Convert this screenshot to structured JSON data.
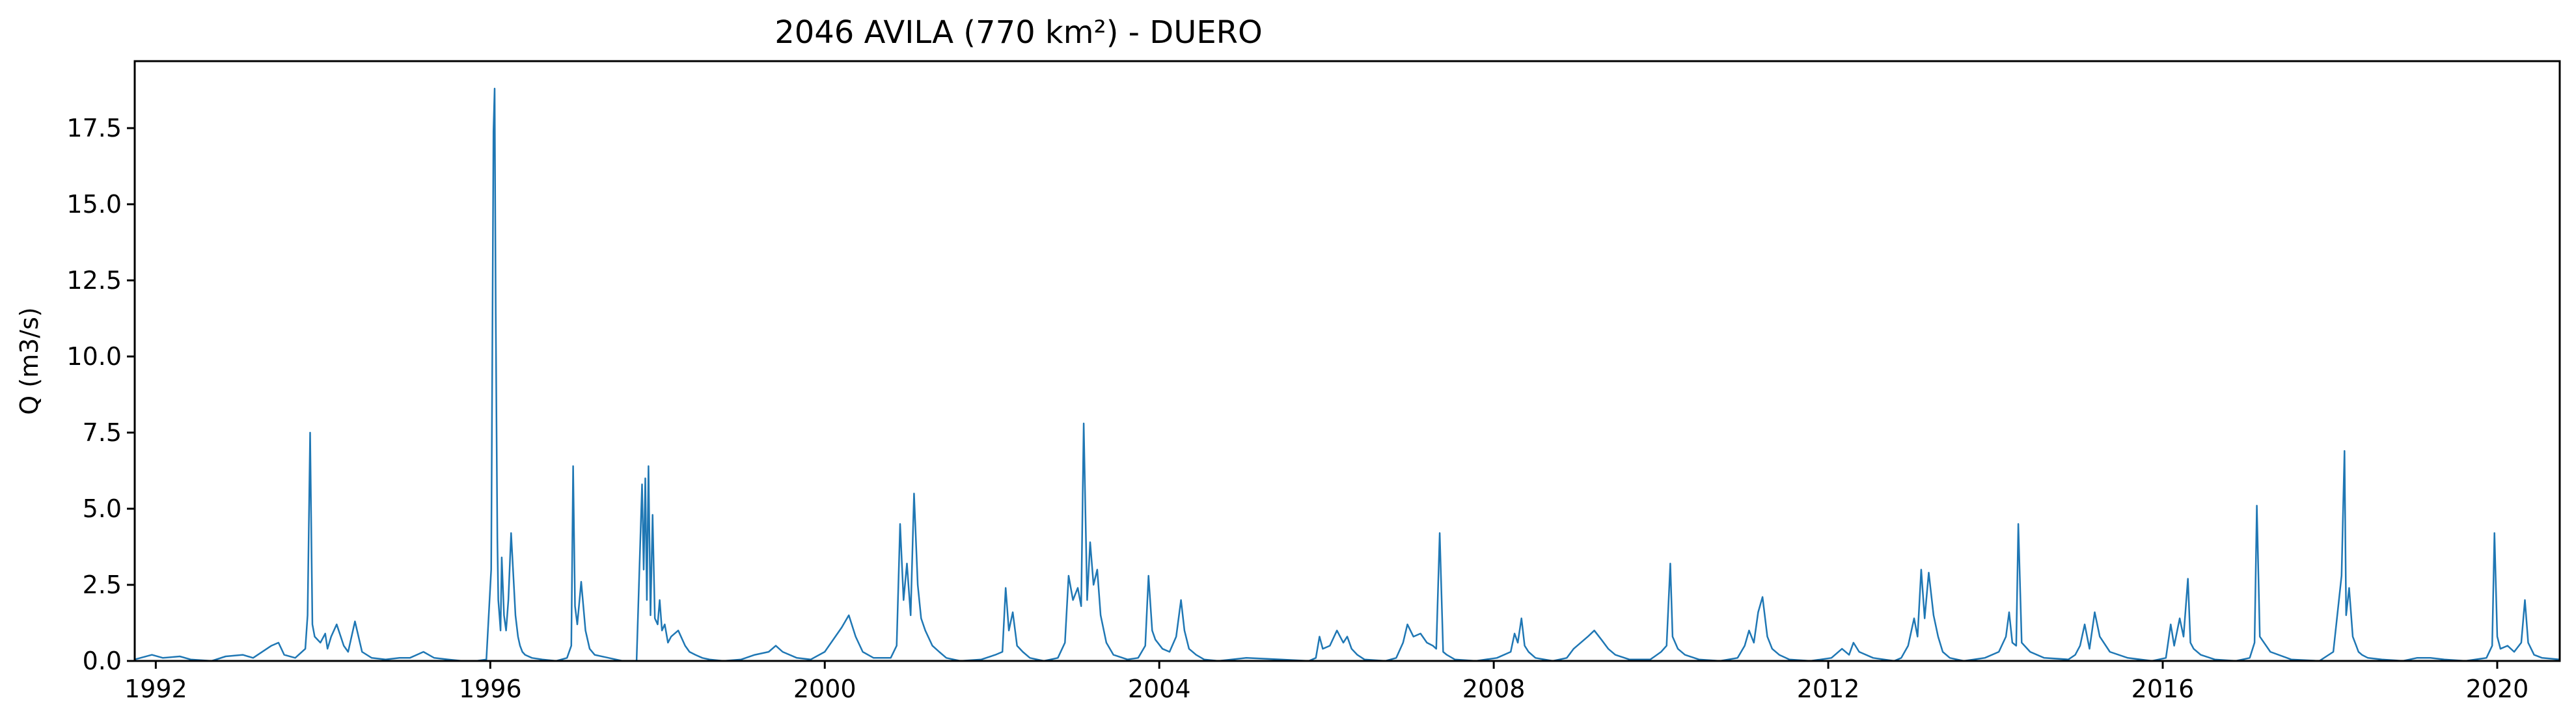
{
  "chart_data": {
    "type": "line",
    "title": "2046 AVILA (770 km²) - DUERO",
    "xlabel": "",
    "ylabel": "Q (m3/s)",
    "xlim": [
      "1991-10-01",
      "2020-09-30"
    ],
    "ylim": [
      0,
      19.7
    ],
    "x_ticks": [
      "1992",
      "1996",
      "2000",
      "2004",
      "2008",
      "2012",
      "2016",
      "2020"
    ],
    "y_ticks": [
      "0.0",
      "2.5",
      "5.0",
      "7.5",
      "10.0",
      "12.5",
      "15.0",
      "17.5"
    ],
    "grid": false,
    "line_color": "#1f77b4",
    "series": [
      {
        "x": [
          "1991-10-01",
          "1991-12-15",
          "1992-02-01",
          "1992-04-15",
          "1992-06-01",
          "1992-09-01",
          "1992-11-01",
          "1993-01-15",
          "1993-03-01",
          "1993-05-20",
          "1993-06-20",
          "1993-07-15",
          "1993-09-01",
          "1993-10-15",
          "1993-10-25",
          "1993-11-05",
          "1993-11-15",
          "1993-11-25",
          "1993-12-20",
          "1994-01-10",
          "1994-01-20",
          "1994-02-05",
          "1994-03-01",
          "1994-04-01",
          "1994-04-20",
          "1994-05-20",
          "1994-06-20",
          "1994-08-01",
          "1994-10-01",
          "1994-12-01",
          "1995-01-15",
          "1995-03-15",
          "1995-05-01",
          "1995-07-01",
          "1995-09-01",
          "1995-11-01",
          "1995-12-15",
          "1996-01-05",
          "1996-01-15",
          "1996-01-20",
          "1996-01-25",
          "1996-01-28",
          "1996-02-01",
          "1996-02-05",
          "1996-02-10",
          "1996-02-15",
          "1996-02-20",
          "1996-03-01",
          "1996-03-10",
          "1996-03-20",
          "1996-04-01",
          "1996-04-20",
          "1996-05-01",
          "1996-05-10",
          "1996-05-20",
          "1996-06-01",
          "1996-07-01",
          "1996-08-15",
          "1996-10-15",
          "1996-12-01",
          "1996-12-20",
          "1996-12-28",
          "1997-01-05",
          "1997-01-15",
          "1997-02-01",
          "1997-02-20",
          "1997-03-10",
          "1997-04-01",
          "1997-06-01",
          "1997-08-01",
          "1997-10-01",
          "1997-10-25",
          "1997-11-01",
          "1997-11-08",
          "1997-11-15",
          "1997-11-22",
          "1997-12-01",
          "1997-12-10",
          "1997-12-20",
          "1998-01-01",
          "1998-01-10",
          "1998-01-20",
          "1998-02-01",
          "1998-02-15",
          "1998-03-01",
          "1998-04-01",
          "1998-05-01",
          "1998-05-20",
          "1998-06-15",
          "1998-07-15",
          "1998-08-15",
          "1998-10-15",
          "1999-01-01",
          "1999-03-01",
          "1999-05-01",
          "1999-06-01",
          "1999-07-01",
          "1999-09-01",
          "1999-11-01",
          "2000-01-01",
          "2000-03-15",
          "2000-04-15",
          "2000-05-15",
          "2000-06-15",
          "2000-08-01",
          "2000-10-15",
          "2000-11-10",
          "2000-11-25",
          "2000-12-10",
          "2000-12-25",
          "2001-01-10",
          "2001-01-25",
          "2001-02-10",
          "2001-02-25",
          "2001-03-15",
          "2001-04-15",
          "2001-05-15",
          "2001-06-15",
          "2001-08-15",
          "2001-11-15",
          "2002-01-15",
          "2002-02-15",
          "2002-03-01",
          "2002-03-15",
          "2002-04-01",
          "2002-04-20",
          "2002-05-15",
          "2002-06-15",
          "2002-08-15",
          "2002-10-15",
          "2002-11-15",
          "2002-12-01",
          "2002-12-20",
          "2003-01-10",
          "2003-01-25",
          "2003-02-05",
          "2003-02-20",
          "2003-03-05",
          "2003-03-20",
          "2003-04-05",
          "2003-04-20",
          "2003-05-15",
          "2003-06-15",
          "2003-08-15",
          "2003-10-01",
          "2003-11-01",
          "2003-11-15",
          "2003-12-01",
          "2003-12-15",
          "2004-01-15",
          "2004-02-15",
          "2004-03-15",
          "2004-04-05",
          "2004-04-20",
          "2004-05-10",
          "2004-06-10",
          "2004-07-15",
          "2004-09-15",
          "2005-01-15",
          "2005-06-15",
          "2005-10-15",
          "2005-11-15",
          "2005-12-01",
          "2005-12-15",
          "2006-01-15",
          "2006-02-15",
          "2006-03-15",
          "2006-04-01",
          "2006-04-20",
          "2006-05-15",
          "2006-06-15",
          "2006-09-15",
          "2006-11-01",
          "2006-12-01",
          "2006-12-20",
          "2007-01-15",
          "2007-02-15",
          "2007-03-15",
          "2007-04-10",
          "2007-04-25",
          "2007-05-10",
          "2007-05-25",
          "2007-06-10",
          "2007-07-15",
          "2007-10-15",
          "2008-01-15",
          "2008-03-15",
          "2008-04-01",
          "2008-04-15",
          "2008-05-01",
          "2008-05-15",
          "2008-06-01",
          "2008-07-01",
          "2008-09-15",
          "2008-11-15",
          "2008-12-15",
          "2009-01-15",
          "2009-02-15",
          "2009-03-15",
          "2009-04-15",
          "2009-05-15",
          "2009-06-15",
          "2009-08-15",
          "2009-11-15",
          "2010-01-01",
          "2010-01-25",
          "2010-02-10",
          "2010-02-20",
          "2010-03-15",
          "2010-04-15",
          "2010-06-15",
          "2010-09-15",
          "2010-12-01",
          "2011-01-01",
          "2011-01-20",
          "2011-02-10",
          "2011-03-01",
          "2011-03-20",
          "2011-04-10",
          "2011-05-01",
          "2011-06-01",
          "2011-07-15",
          "2011-10-15",
          "2012-01-15",
          "2012-03-01",
          "2012-04-01",
          "2012-04-20",
          "2012-05-15",
          "2012-07-15",
          "2012-10-15",
          "2012-11-15",
          "2012-12-15",
          "2013-01-10",
          "2013-01-25",
          "2013-02-10",
          "2013-02-25",
          "2013-03-15",
          "2013-04-05",
          "2013-04-25",
          "2013-05-15",
          "2013-06-15",
          "2013-08-15",
          "2013-11-15",
          "2014-01-15",
          "2014-02-15",
          "2014-03-01",
          "2014-03-15",
          "2014-04-01",
          "2014-04-10",
          "2014-04-25",
          "2014-06-01",
          "2014-08-01",
          "2014-11-15",
          "2014-12-15",
          "2015-01-05",
          "2015-01-25",
          "2015-02-15",
          "2015-03-10",
          "2015-04-01",
          "2015-05-15",
          "2015-08-01",
          "2015-11-15",
          "2016-01-15",
          "2016-02-05",
          "2016-02-20",
          "2016-03-15",
          "2016-04-01",
          "2016-04-20",
          "2016-05-01",
          "2016-05-15",
          "2016-06-15",
          "2016-08-15",
          "2016-11-15",
          "2017-01-15",
          "2017-02-05",
          "2017-02-15",
          "2017-02-28",
          "2017-04-15",
          "2017-07-15",
          "2017-11-15",
          "2018-01-15",
          "2018-02-20",
          "2018-03-05",
          "2018-03-12",
          "2018-03-25",
          "2018-04-10",
          "2018-04-25",
          "2018-05-05",
          "2018-05-20",
          "2018-06-15",
          "2018-08-15",
          "2018-11-15",
          "2019-01-15",
          "2019-03-15",
          "2019-05-15",
          "2019-08-15",
          "2019-11-15",
          "2019-12-10",
          "2019-12-20",
          "2020-01-01",
          "2020-01-15",
          "2020-02-15",
          "2020-03-15",
          "2020-04-15",
          "2020-05-01",
          "2020-05-15",
          "2020-06-10",
          "2020-07-15",
          "2020-09-30"
        ],
        "y": [
          0.05,
          0.2,
          0.1,
          0.15,
          0.05,
          0.0,
          0.15,
          0.2,
          0.1,
          0.5,
          0.6,
          0.2,
          0.1,
          0.4,
          1.5,
          7.5,
          1.2,
          0.8,
          0.6,
          0.9,
          0.4,
          0.8,
          1.2,
          0.5,
          0.3,
          1.3,
          0.3,
          0.1,
          0.05,
          0.1,
          0.1,
          0.3,
          0.1,
          0.05,
          0.0,
          0.0,
          0.05,
          3.0,
          17.4,
          18.8,
          11.4,
          8.0,
          4.0,
          2.0,
          1.5,
          1.0,
          3.4,
          1.5,
          1.0,
          2.0,
          4.2,
          1.5,
          0.8,
          0.5,
          0.3,
          0.2,
          0.1,
          0.05,
          0.0,
          0.1,
          0.5,
          6.4,
          1.8,
          1.2,
          2.6,
          1.0,
          0.4,
          0.2,
          0.1,
          0.0,
          0.0,
          5.8,
          3.0,
          6.0,
          2.0,
          6.4,
          1.5,
          4.8,
          1.4,
          1.2,
          2.0,
          1.0,
          1.2,
          0.6,
          0.8,
          1.0,
          0.5,
          0.3,
          0.2,
          0.1,
          0.05,
          0.0,
          0.05,
          0.2,
          0.3,
          0.5,
          0.3,
          0.1,
          0.05,
          0.3,
          1.1,
          1.5,
          0.8,
          0.3,
          0.1,
          0.1,
          0.5,
          4.5,
          2.0,
          3.2,
          1.5,
          5.5,
          2.5,
          1.4,
          1.0,
          0.5,
          0.3,
          0.1,
          0.0,
          0.05,
          0.2,
          0.3,
          2.4,
          1.0,
          1.6,
          0.5,
          0.3,
          0.1,
          0.0,
          0.1,
          0.6,
          2.8,
          2.0,
          2.4,
          1.8,
          7.8,
          2.0,
          3.9,
          2.5,
          3.0,
          1.5,
          0.6,
          0.2,
          0.05,
          0.1,
          0.5,
          2.8,
          1.0,
          0.7,
          0.4,
          0.3,
          0.8,
          2.0,
          1.0,
          0.4,
          0.2,
          0.05,
          0.0,
          0.1,
          0.05,
          0.0,
          0.1,
          0.8,
          0.4,
          0.5,
          1.0,
          0.6,
          0.8,
          0.4,
          0.2,
          0.05,
          0.0,
          0.1,
          0.6,
          1.2,
          0.8,
          0.9,
          0.6,
          0.5,
          0.4,
          4.2,
          0.3,
          0.2,
          0.05,
          0.0,
          0.1,
          0.3,
          0.9,
          0.6,
          1.4,
          0.5,
          0.3,
          0.1,
          0.0,
          0.1,
          0.4,
          0.6,
          0.8,
          1.0,
          0.7,
          0.4,
          0.2,
          0.05,
          0.05,
          0.3,
          0.5,
          3.2,
          0.8,
          0.4,
          0.2,
          0.05,
          0.0,
          0.1,
          0.5,
          1.0,
          0.6,
          1.6,
          2.1,
          0.8,
          0.4,
          0.2,
          0.05,
          0.0,
          0.1,
          0.4,
          0.2,
          0.6,
          0.3,
          0.1,
          0.0,
          0.1,
          0.5,
          1.4,
          0.8,
          3.0,
          1.4,
          2.9,
          1.5,
          0.8,
          0.3,
          0.1,
          0.0,
          0.1,
          0.3,
          0.8,
          1.6,
          0.6,
          0.5,
          4.5,
          0.6,
          0.3,
          0.1,
          0.05,
          0.2,
          0.5,
          1.2,
          0.4,
          1.6,
          0.8,
          0.3,
          0.1,
          0.0,
          0.1,
          1.2,
          0.5,
          1.4,
          0.8,
          2.7,
          0.6,
          0.4,
          0.2,
          0.05,
          0.0,
          0.1,
          0.6,
          5.1,
          0.8,
          0.3,
          0.05,
          0.0,
          0.3,
          2.8,
          6.9,
          1.5,
          2.4,
          0.8,
          0.5,
          0.3,
          0.2,
          0.1,
          0.05,
          0.0,
          0.1,
          0.1,
          0.05,
          0.0,
          0.1,
          0.5,
          4.2,
          0.8,
          0.4,
          0.5,
          0.3,
          0.6,
          2.0,
          0.6,
          0.2,
          0.1,
          0.05
        ]
      }
    ]
  }
}
